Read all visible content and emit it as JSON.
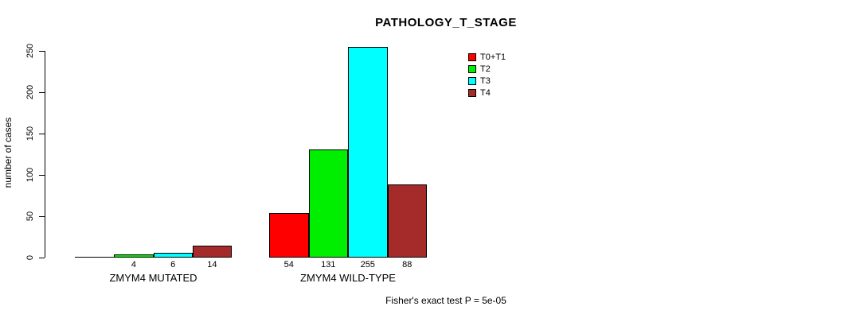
{
  "title": "PATHOLOGY_T_STAGE",
  "footer": "Fisher's exact test P = 5e-05",
  "chart_data": {
    "type": "bar",
    "title": "PATHOLOGY_T_STAGE",
    "xlabel": "",
    "ylabel": "number of cases",
    "categories": [
      "ZMYM4 MUTATED",
      "ZMYM4 WILD-TYPE"
    ],
    "series": [
      {
        "name": "T0+T1",
        "color": "#FF0000",
        "values": [
          0,
          54
        ]
      },
      {
        "name": "T2",
        "color": "#00EE00",
        "values": [
          4,
          131
        ]
      },
      {
        "name": "T3",
        "color": "#00FFFF",
        "values": [
          6,
          255
        ]
      },
      {
        "name": "T4",
        "color": "#A52A2A",
        "values": [
          14,
          88
        ]
      }
    ],
    "bar_value_labels": [
      [
        "",
        "4",
        "6",
        "14"
      ],
      [
        "54",
        "131",
        "255",
        "88"
      ]
    ],
    "ylim": [
      0,
      250
    ],
    "y_ticks": [
      0,
      50,
      100,
      150,
      200,
      250
    ],
    "grid": false,
    "legend_position": "top-right",
    "annotation": "Fisher's exact test P = 5e-05"
  }
}
